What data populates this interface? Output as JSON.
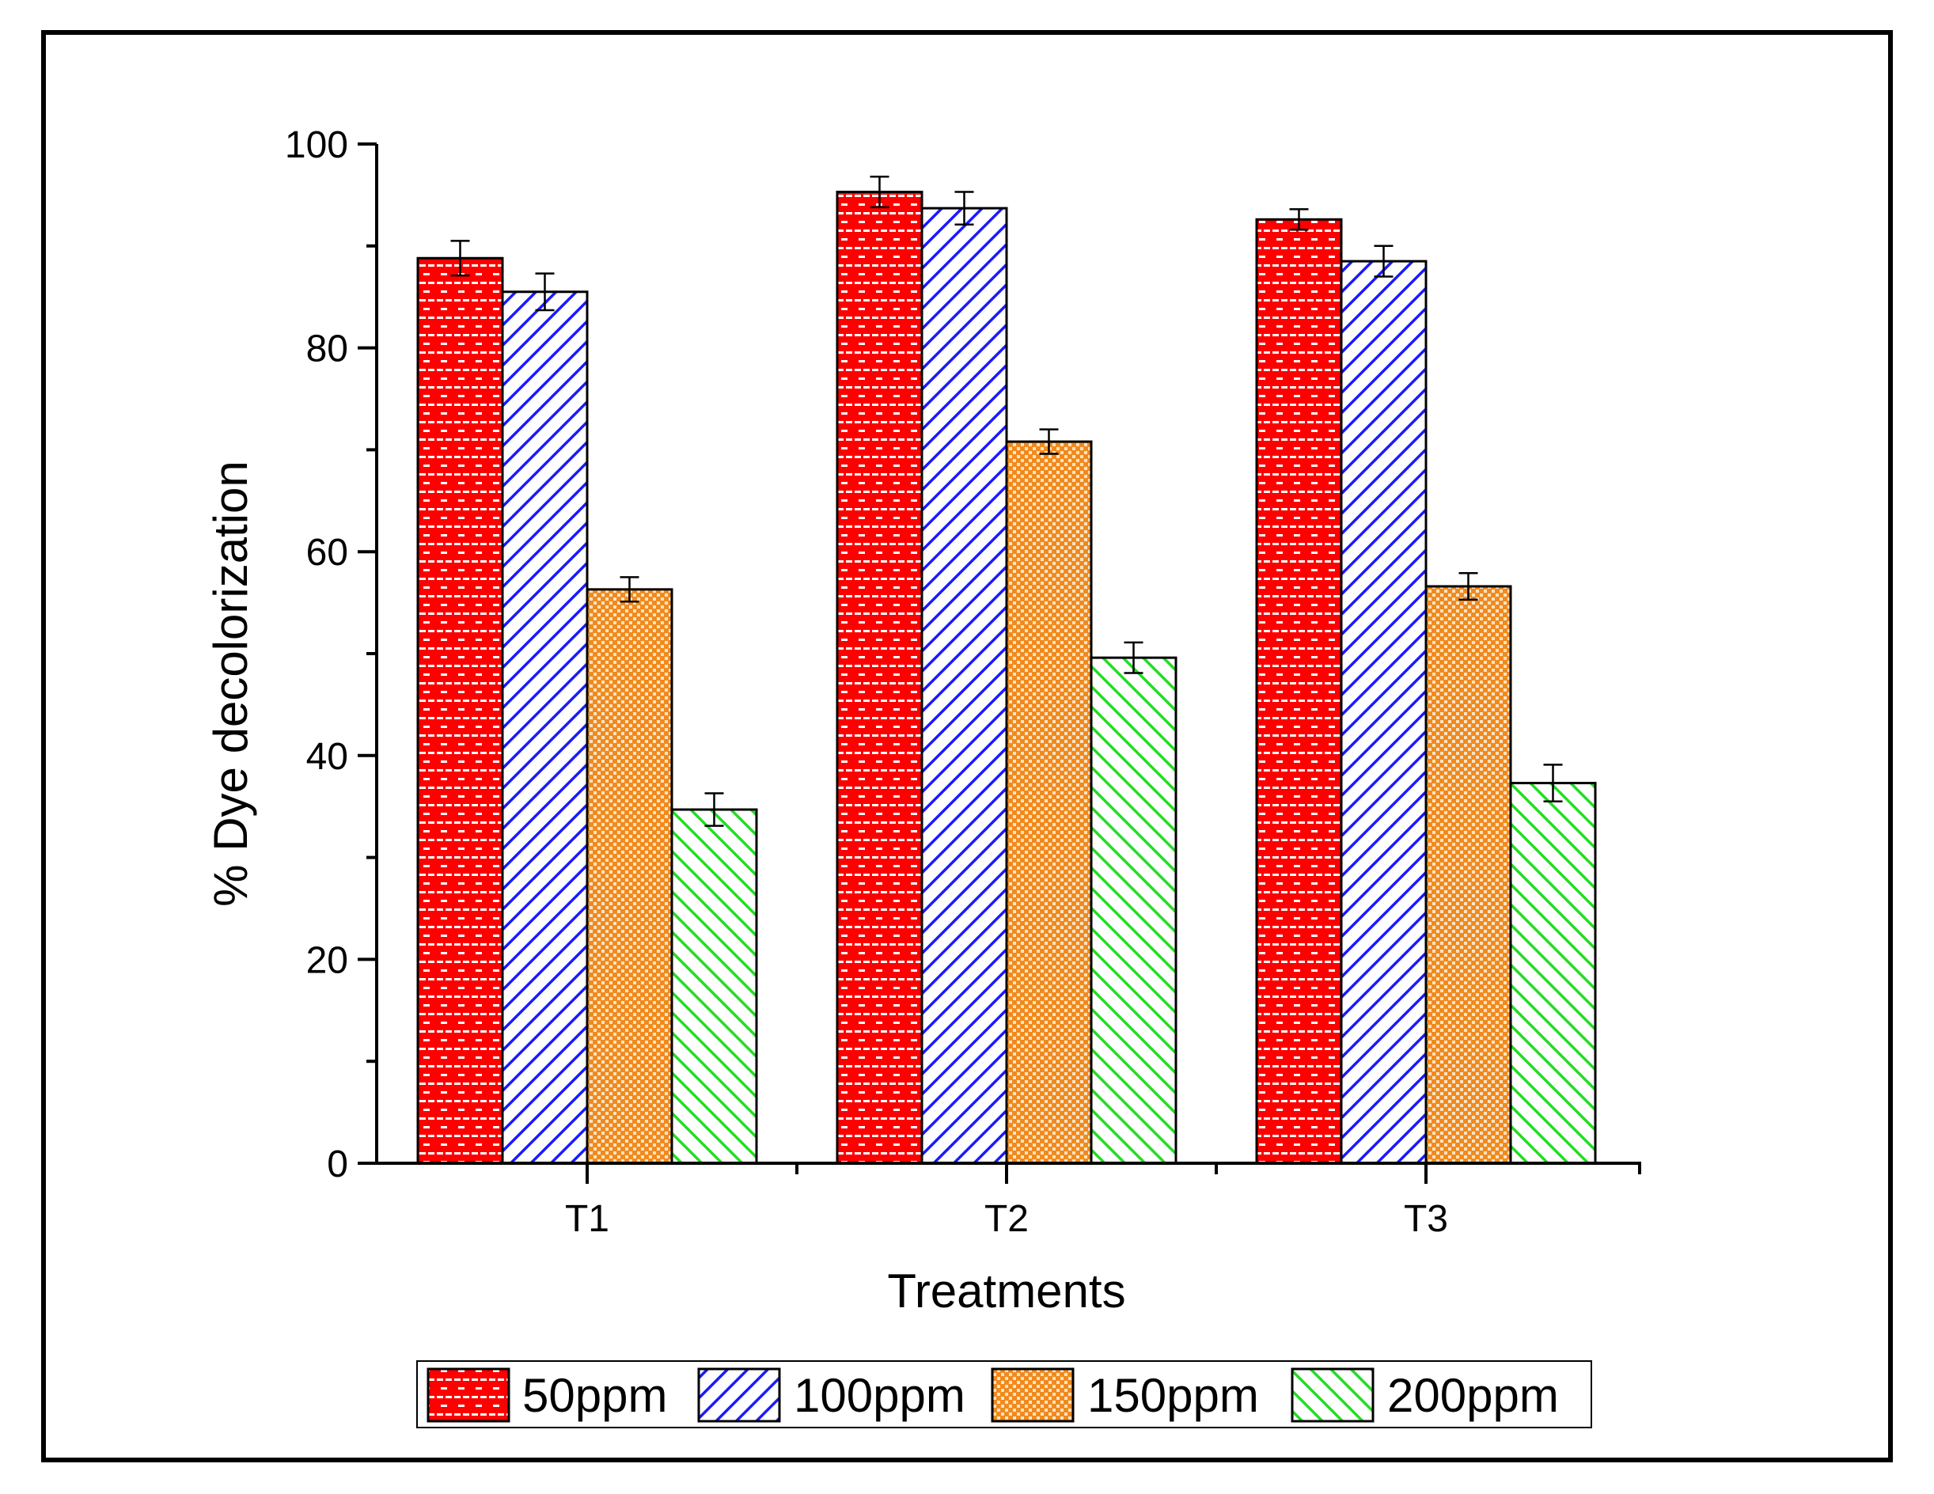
{
  "chart_data": {
    "type": "bar",
    "title": "",
    "xlabel": "Treatments",
    "ylabel": "% Dye decolorization",
    "categories": [
      "T1",
      "T2",
      "T3"
    ],
    "ylim": [
      0,
      100
    ],
    "yticks": [
      0,
      20,
      40,
      60,
      80,
      100
    ],
    "series": [
      {
        "name": "50ppm",
        "values": [
          88.8,
          95.3,
          92.6
        ],
        "errors": [
          1.7,
          1.5,
          1.0
        ],
        "color": "#ff0000",
        "pattern": "bricks"
      },
      {
        "name": "100ppm",
        "values": [
          85.5,
          93.7,
          88.5
        ],
        "errors": [
          1.8,
          1.6,
          1.5
        ],
        "color": "#1a1aff",
        "pattern": "hatch-right"
      },
      {
        "name": "150ppm",
        "values": [
          56.3,
          70.8,
          56.6
        ],
        "errors": [
          1.2,
          1.2,
          1.3
        ],
        "color": "#f08a1e",
        "pattern": "checker"
      },
      {
        "name": "200ppm",
        "values": [
          34.7,
          49.6,
          37.3
        ],
        "errors": [
          1.6,
          1.5,
          1.8
        ],
        "color": "#22dd22",
        "pattern": "hatch-left"
      }
    ],
    "legend_position": "bottom-center"
  }
}
